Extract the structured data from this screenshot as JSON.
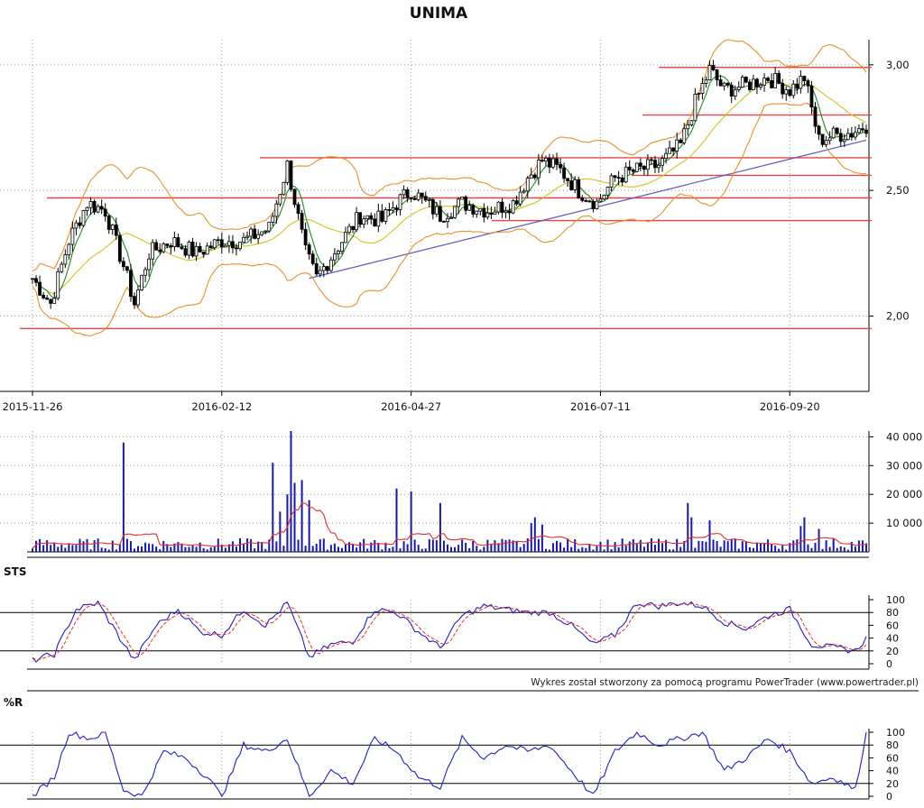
{
  "title": "UNIMA",
  "credit": "Wykres został stworzony za pomocą programu PowerTrader (www.powertrader.pl)",
  "colors": {
    "grid": "#999999",
    "ma_green": "#1f8a1f",
    "ma_yellow": "#d4c21a",
    "bollinger": "#e8902a",
    "resistance": "#e84545",
    "trendline": "#5b55c8",
    "volume": "#1a1aa0",
    "volume_avg": "#e03030",
    "sts_k": "#2020c0",
    "sts_d": "#e03030",
    "wr": "#2020c0"
  },
  "chart_data": [
    {
      "type": "candlestick",
      "title": "UNIMA",
      "x_ticks": [
        "2015-11-26",
        "2016-02-12",
        "2016-04-27",
        "2016-07-11",
        "2016-09-20"
      ],
      "y_ticks": [
        "2,00",
        "2,50",
        "3,00"
      ],
      "ylim": [
        1.7,
        3.1
      ],
      "n_sessions": 230,
      "tick_index": [
        0,
        52,
        104,
        156,
        208
      ],
      "horizontal_levels": [
        1.95,
        2.38,
        2.47,
        2.56,
        2.63,
        2.8,
        2.99
      ],
      "trendline": [
        [
          76,
          2.15
        ],
        [
          229,
          2.7
        ]
      ],
      "ohlc_sample_close": [
        [
          0,
          2.15
        ],
        [
          5,
          2.05
        ],
        [
          10,
          2.3
        ],
        [
          15,
          2.45
        ],
        [
          20,
          2.42
        ],
        [
          25,
          2.2
        ],
        [
          28,
          2.05
        ],
        [
          32,
          2.25
        ],
        [
          38,
          2.3
        ],
        [
          45,
          2.25
        ],
        [
          52,
          2.3
        ],
        [
          58,
          2.3
        ],
        [
          65,
          2.35
        ],
        [
          70,
          2.6
        ],
        [
          75,
          2.25
        ],
        [
          78,
          2.15
        ],
        [
          85,
          2.3
        ],
        [
          90,
          2.4
        ],
        [
          96,
          2.38
        ],
        [
          100,
          2.45
        ],
        [
          104,
          2.5
        ],
        [
          108,
          2.45
        ],
        [
          112,
          2.4
        ],
        [
          118,
          2.45
        ],
        [
          125,
          2.42
        ],
        [
          132,
          2.45
        ],
        [
          136,
          2.55
        ],
        [
          140,
          2.62
        ],
        [
          145,
          2.58
        ],
        [
          150,
          2.5
        ],
        [
          155,
          2.45
        ],
        [
          160,
          2.55
        ],
        [
          166,
          2.58
        ],
        [
          172,
          2.6
        ],
        [
          178,
          2.68
        ],
        [
          182,
          2.85
        ],
        [
          186,
          2.98
        ],
        [
          190,
          2.9
        ],
        [
          196,
          2.92
        ],
        [
          202,
          2.95
        ],
        [
          208,
          2.9
        ],
        [
          212,
          2.95
        ],
        [
          216,
          2.7
        ],
        [
          220,
          2.72
        ],
        [
          225,
          2.73
        ],
        [
          229,
          2.76
        ]
      ]
    },
    {
      "type": "bar",
      "title": "",
      "y_ticks": [
        "10 000",
        "20 000",
        "30 000",
        "40 000"
      ],
      "ylim": [
        0,
        42000
      ],
      "spike_values": [
        [
          25,
          38000
        ],
        [
          66,
          31000
        ],
        [
          71,
          42000
        ],
        [
          100,
          22000
        ],
        [
          104,
          21000
        ],
        [
          112,
          17000
        ],
        [
          138,
          12000
        ],
        [
          180,
          17000
        ],
        [
          212,
          12000
        ]
      ],
      "baseline_value": 2500
    },
    {
      "type": "line",
      "title": "STS",
      "y_ticks": [
        "0",
        "20",
        "40",
        "60",
        "80",
        "100"
      ],
      "ylim": [
        0,
        100
      ],
      "reference_lines": [
        20,
        80
      ],
      "series": [
        {
          "name": "",
          "points": [
            [
              0,
              5
            ],
            [
              6,
              15
            ],
            [
              12,
              85
            ],
            [
              18,
              95
            ],
            [
              24,
              40
            ],
            [
              28,
              5
            ],
            [
              34,
              60
            ],
            [
              40,
              85
            ],
            [
              46,
              50
            ],
            [
              52,
              45
            ],
            [
              58,
              85
            ],
            [
              64,
              60
            ],
            [
              70,
              95
            ],
            [
              76,
              10
            ],
            [
              82,
              30
            ],
            [
              88,
              35
            ],
            [
              94,
              85
            ],
            [
              100,
              80
            ],
            [
              106,
              50
            ],
            [
              112,
              25
            ],
            [
              118,
              75
            ],
            [
              124,
              90
            ],
            [
              130,
              85
            ],
            [
              136,
              80
            ],
            [
              142,
              80
            ],
            [
              148,
              60
            ],
            [
              154,
              30
            ],
            [
              160,
              45
            ],
            [
              166,
              95
            ],
            [
              172,
              90
            ],
            [
              178,
              95
            ],
            [
              184,
              90
            ],
            [
              190,
              65
            ],
            [
              196,
              55
            ],
            [
              202,
              75
            ],
            [
              208,
              85
            ],
            [
              214,
              30
            ],
            [
              220,
              25
            ],
            [
              226,
              20
            ],
            [
              229,
              40
            ]
          ]
        }
      ]
    },
    {
      "type": "line",
      "title": "%R",
      "y_ticks": [
        "0",
        "20",
        "40",
        "60",
        "80",
        "100"
      ],
      "ylim": [
        0,
        100
      ],
      "reference_lines": [
        20,
        80
      ],
      "series": [
        {
          "name": "",
          "points": [
            [
              0,
              0
            ],
            [
              6,
              30
            ],
            [
              10,
              100
            ],
            [
              16,
              90
            ],
            [
              20,
              100
            ],
            [
              25,
              10
            ],
            [
              30,
              0
            ],
            [
              36,
              70
            ],
            [
              42,
              60
            ],
            [
              48,
              30
            ],
            [
              52,
              0
            ],
            [
              58,
              80
            ],
            [
              64,
              70
            ],
            [
              70,
              90
            ],
            [
              76,
              0
            ],
            [
              82,
              40
            ],
            [
              88,
              20
            ],
            [
              94,
              90
            ],
            [
              100,
              70
            ],
            [
              106,
              30
            ],
            [
              112,
              15
            ],
            [
              118,
              90
            ],
            [
              124,
              60
            ],
            [
              130,
              80
            ],
            [
              136,
              70
            ],
            [
              142,
              80
            ],
            [
              148,
              40
            ],
            [
              154,
              0
            ],
            [
              160,
              70
            ],
            [
              166,
              100
            ],
            [
              172,
              80
            ],
            [
              178,
              90
            ],
            [
              184,
              100
            ],
            [
              190,
              40
            ],
            [
              196,
              60
            ],
            [
              202,
              90
            ],
            [
              208,
              70
            ],
            [
              214,
              20
            ],
            [
              220,
              30
            ],
            [
              226,
              10
            ],
            [
              229,
              100
            ]
          ]
        }
      ]
    }
  ]
}
